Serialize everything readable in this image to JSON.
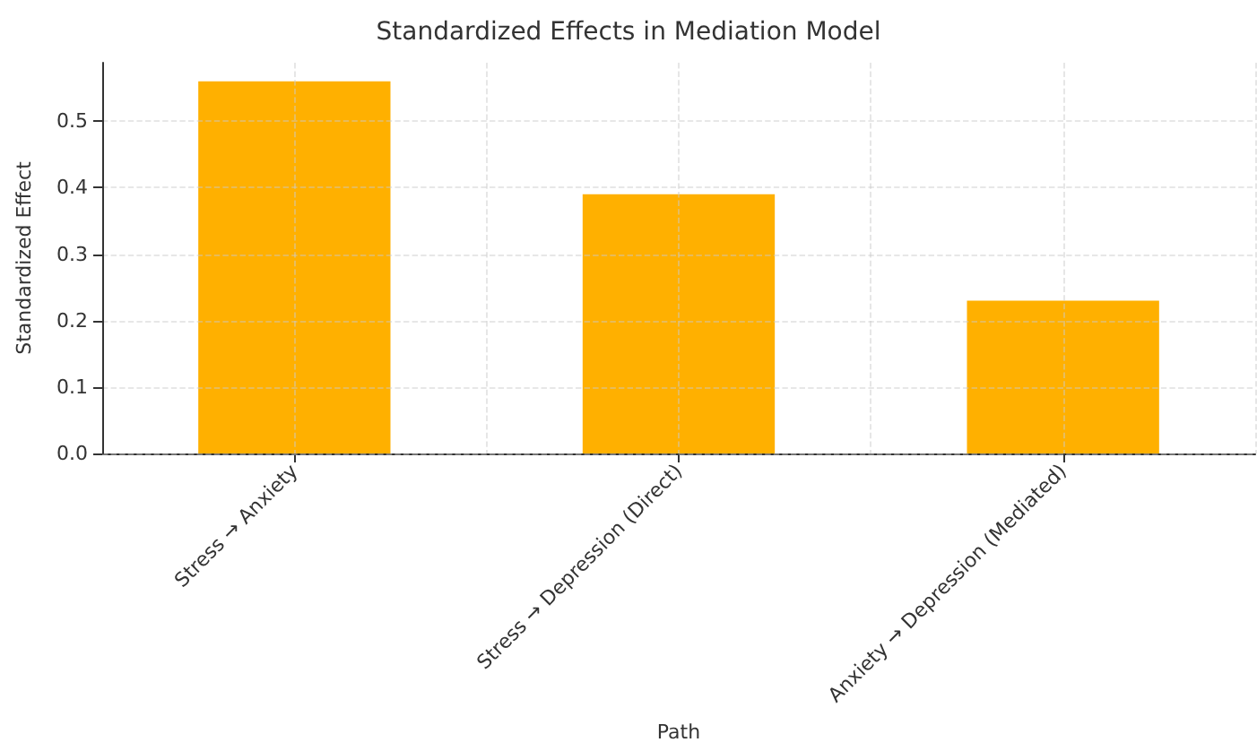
{
  "chart_data": {
    "type": "bar",
    "title": "Standardized Effects in Mediation Model",
    "xlabel": "Path",
    "ylabel": "Standardized Effect",
    "categories": [
      "Stress → Anxiety",
      "Stress → Depression (Direct)",
      "Anxiety → Depression (Mediated)"
    ],
    "values": [
      0.56,
      0.39,
      0.23
    ],
    "color": "#ffb000",
    "ylim": [
      0,
      0.588
    ],
    "yticks": [
      {
        "value": 0,
        "label": "0.0"
      },
      {
        "value": 0.1,
        "label": "0.1"
      },
      {
        "value": 0.2,
        "label": "0.2"
      },
      {
        "value": 0.3,
        "label": "0.3"
      },
      {
        "value": 0.4,
        "label": "0.4"
      },
      {
        "value": 0.5,
        "label": "0.5"
      }
    ],
    "grid": true
  }
}
